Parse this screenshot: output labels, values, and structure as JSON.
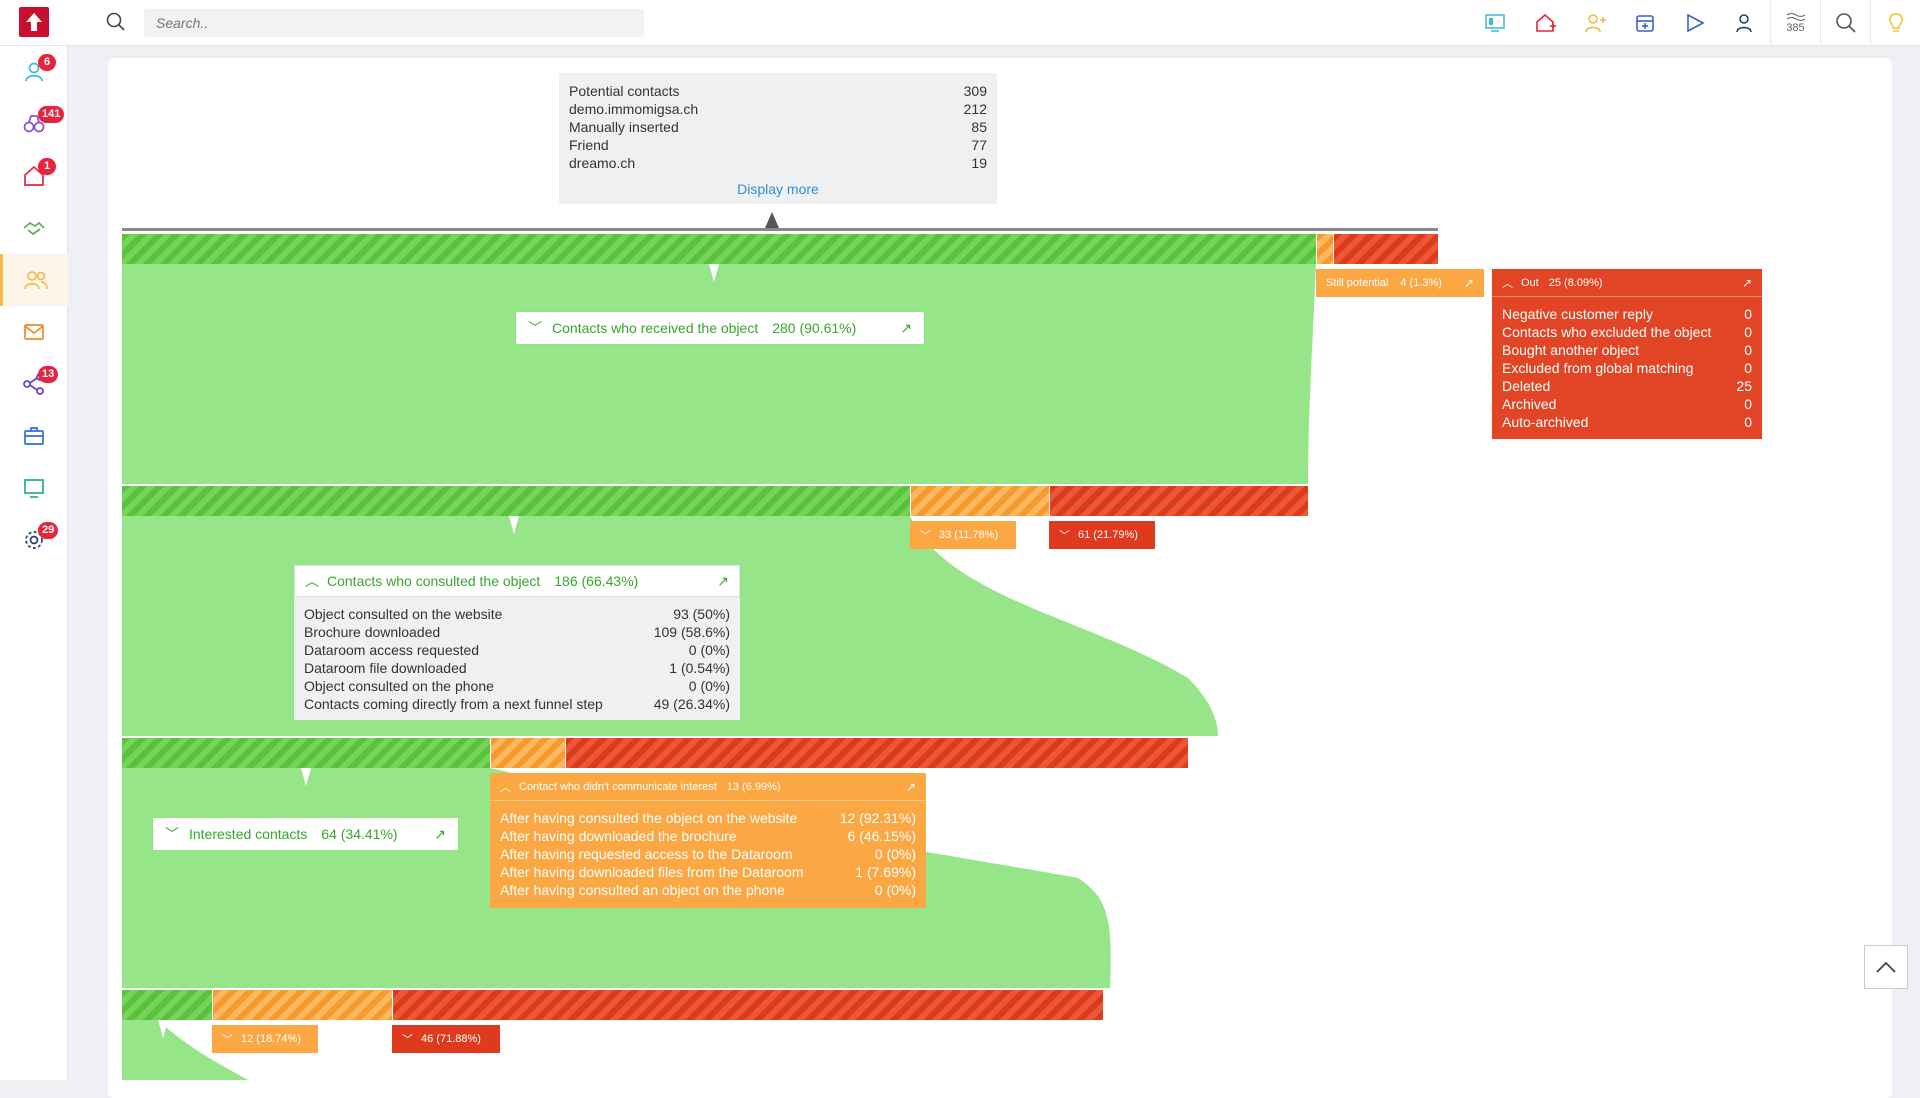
{
  "search": {
    "placeholder": "Search.."
  },
  "topbar": {
    "counter_value": "385"
  },
  "sidebar": {
    "badges": {
      "contacts": "6",
      "matching": "141",
      "objects": "1",
      "share": "13",
      "settings": "29"
    }
  },
  "potential": {
    "rows": [
      {
        "label": "Potential contacts",
        "value": "309"
      },
      {
        "label": "demo.immomigsa.ch",
        "value": "212"
      },
      {
        "label": "Manually inserted",
        "value": "85"
      },
      {
        "label": "Friend",
        "value": "77"
      },
      {
        "label": "dreamo.ch",
        "value": "19"
      }
    ],
    "display_more": "Display more"
  },
  "still_potential": {
    "label": "Still potential",
    "value": "4 (1.3%)"
  },
  "out": {
    "label": "Out",
    "value": "25 (8.09%)",
    "rows": [
      {
        "label": "Negative customer reply",
        "value": "0"
      },
      {
        "label": "Contacts who excluded the object",
        "value": "0"
      },
      {
        "label": "Bought another object",
        "value": "0"
      },
      {
        "label": "Excluded from global matching",
        "value": "0"
      },
      {
        "label": "Deleted",
        "value": "25"
      },
      {
        "label": "Archived",
        "value": "0"
      },
      {
        "label": "Auto-archived",
        "value": "0"
      }
    ]
  },
  "received": {
    "label": "Contacts who received the object",
    "value": "280 (90.61%)"
  },
  "received_orange": "33 (11.78%)",
  "received_red": "61 (21.79%)",
  "consulted": {
    "label": "Contacts who consulted the object",
    "value": "186 (66.43%)",
    "rows": [
      {
        "label": "Object consulted on the website",
        "value": "93  (50%)"
      },
      {
        "label": "Brochure downloaded",
        "value": "109  (58.6%)"
      },
      {
        "label": "Dataroom access requested",
        "value": "0  (0%)"
      },
      {
        "label": "Dataroom file downloaded",
        "value": "1  (0.54%)"
      },
      {
        "label": "Object consulted on the phone",
        "value": "0  (0%)"
      },
      {
        "label": "Contacts coming directly from a next funnel step",
        "value": "49  (26.34%)"
      }
    ]
  },
  "no_interest": {
    "label": "Contact who didn't communicate interest",
    "value": "13 (6.99%)",
    "rows": [
      {
        "label": "After having consulted the object on the website",
        "value": "12  (92.31%)"
      },
      {
        "label": "After having downloaded the brochure",
        "value": "6  (46.15%)"
      },
      {
        "label": "After having requested access to the Dataroom",
        "value": "0  (0%)"
      },
      {
        "label": "After having downloaded files from the Dataroom",
        "value": "1  (7.69%)"
      },
      {
        "label": "After having consulted an object on the phone",
        "value": "0  (0%)"
      }
    ]
  },
  "interested": {
    "label": "Interested contacts",
    "value": "64 (34.41%)"
  },
  "interested_orange": "12 (18.74%)",
  "interested_red": "46 (71.88%)",
  "colors": {
    "green": "#97e589",
    "orange": "#fba844",
    "red": "#e24525",
    "accent": "#c8102e"
  }
}
